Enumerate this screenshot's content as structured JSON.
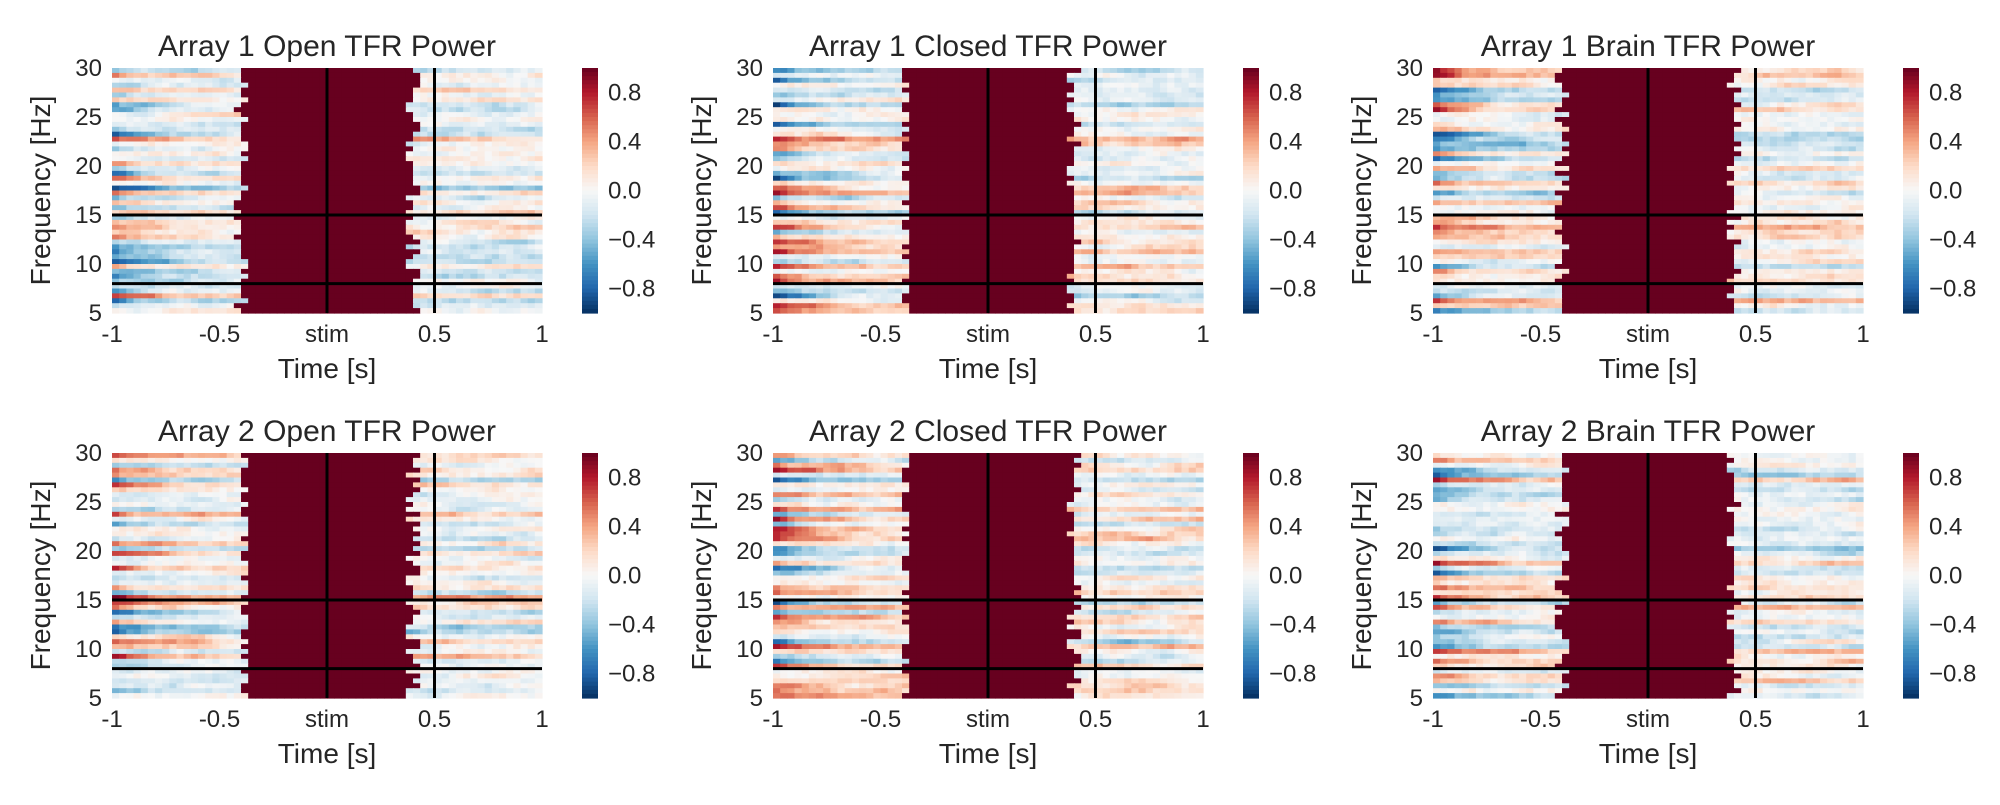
{
  "chart_data": [
    {
      "type": "heatmap",
      "title": "Array 1 Open TFR Power",
      "xlabel": "Time [s]",
      "ylabel": "Frequency [Hz]",
      "xlim": [
        -1,
        1
      ],
      "ylim": [
        5,
        30
      ],
      "xtick_labels": [
        "-1",
        "-0.5",
        "stim",
        "0.5",
        "1"
      ],
      "ytick_labels": [
        "5",
        "10",
        "15",
        "20",
        "25",
        "30"
      ],
      "hlines": [
        8,
        15
      ],
      "vlines": [
        0,
        0.5
      ],
      "colorbar": {
        "ticks": [
          "0.8",
          "0.4",
          "0.0",
          "−0.4",
          "−0.8"
        ],
        "range": [
          -1,
          1
        ],
        "colormap": "RdBu_r"
      },
      "saturated_interval": [
        -0.4,
        0.4
      ],
      "saturated_value": 1.0
    },
    {
      "type": "heatmap",
      "title": "Array 1 Closed TFR Power",
      "xlabel": "Time [s]",
      "ylabel": "Frequency [Hz]",
      "xlim": [
        -1,
        1
      ],
      "ylim": [
        5,
        30
      ],
      "xtick_labels": [
        "-1",
        "-0.5",
        "stim",
        "0.5",
        "1"
      ],
      "ytick_labels": [
        "5",
        "10",
        "15",
        "20",
        "25",
        "30"
      ],
      "hlines": [
        8,
        15
      ],
      "vlines": [
        0,
        0.5
      ],
      "colorbar": {
        "ticks": [
          "0.8",
          "0.4",
          "0.0",
          "−0.4",
          "−0.8"
        ],
        "range": [
          -1,
          1
        ],
        "colormap": "RdBu_r"
      },
      "saturated_interval": [
        -0.38,
        0.4
      ],
      "saturated_value": 1.0
    },
    {
      "type": "heatmap",
      "title": "Array 1 Brain TFR Power",
      "xlabel": "Time [s]",
      "ylabel": "Frequency [Hz]",
      "xlim": [
        -1,
        1
      ],
      "ylim": [
        5,
        30
      ],
      "xtick_labels": [
        "-1",
        "-0.5",
        "stim",
        "0.5",
        "1"
      ],
      "ytick_labels": [
        "5",
        "10",
        "15",
        "20",
        "25",
        "30"
      ],
      "hlines": [
        8,
        15
      ],
      "vlines": [
        0,
        0.5
      ],
      "colorbar": {
        "ticks": [
          "0.8",
          "0.4",
          "0.0",
          "−0.4",
          "−0.8"
        ],
        "range": [
          -1,
          1
        ],
        "colormap": "RdBu_r"
      },
      "saturated_interval": [
        -0.4,
        0.4
      ],
      "saturated_value": 1.0
    },
    {
      "type": "heatmap",
      "title": "Array 2 Open TFR Power",
      "xlabel": "Time [s]",
      "ylabel": "Frequency [Hz]",
      "xlim": [
        -1,
        1
      ],
      "ylim": [
        5,
        30
      ],
      "xtick_labels": [
        "-1",
        "-0.5",
        "stim",
        "0.5",
        "1"
      ],
      "ytick_labels": [
        "5",
        "10",
        "15",
        "20",
        "25",
        "30"
      ],
      "hlines": [
        8,
        15
      ],
      "vlines": [
        0,
        0.5
      ],
      "colorbar": {
        "ticks": [
          "0.8",
          "0.4",
          "0.0",
          "−0.4",
          "−0.8"
        ],
        "range": [
          -1,
          1
        ],
        "colormap": "RdBu_r"
      },
      "saturated_interval": [
        -0.38,
        0.4
      ],
      "saturated_value": 1.0
    },
    {
      "type": "heatmap",
      "title": "Array 2 Closed TFR Power",
      "xlabel": "Time [s]",
      "ylabel": "Frequency [Hz]",
      "xlim": [
        -1,
        1
      ],
      "ylim": [
        5,
        30
      ],
      "xtick_labels": [
        "-1",
        "-0.5",
        "stim",
        "0.5",
        "1"
      ],
      "ytick_labels": [
        "5",
        "10",
        "15",
        "20",
        "25",
        "30"
      ],
      "hlines": [
        8,
        15
      ],
      "vlines": [
        0,
        0.5
      ],
      "colorbar": {
        "ticks": [
          "0.8",
          "0.4",
          "0.0",
          "−0.4",
          "−0.8"
        ],
        "range": [
          -1,
          1
        ],
        "colormap": "RdBu_r"
      },
      "saturated_interval": [
        -0.38,
        0.4
      ],
      "saturated_value": 1.0
    },
    {
      "type": "heatmap",
      "title": "Array 2 Brain TFR Power",
      "xlabel": "Time [s]",
      "ylabel": "Frequency [Hz]",
      "xlim": [
        -1,
        1
      ],
      "ylim": [
        5,
        30
      ],
      "xtick_labels": [
        "-1",
        "-0.5",
        "stim",
        "0.5",
        "1"
      ],
      "ytick_labels": [
        "5",
        "10",
        "15",
        "20",
        "25",
        "30"
      ],
      "hlines": [
        8,
        15
      ],
      "vlines": [
        0,
        0.5
      ],
      "colorbar": {
        "ticks": [
          "0.8",
          "0.4",
          "0.0",
          "−0.4",
          "−0.8"
        ],
        "range": [
          -1,
          1
        ],
        "colormap": "RdBu_r"
      },
      "saturated_interval": [
        -0.4,
        0.4
      ],
      "saturated_value": 1.0
    }
  ],
  "colors": {
    "saturated": "#67001f",
    "lines": "#000000",
    "text": "#262626"
  }
}
